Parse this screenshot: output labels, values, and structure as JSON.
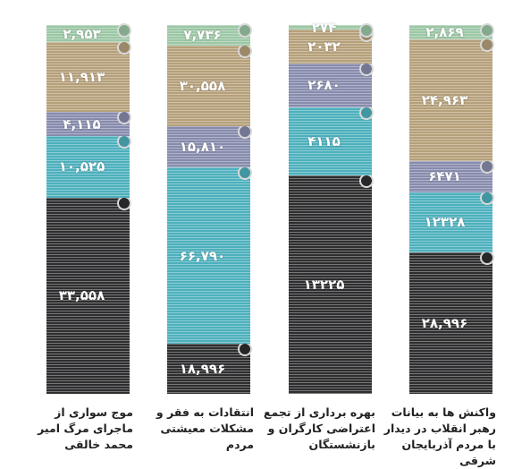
{
  "chart_data": {
    "type": "stacked_percent_bar",
    "categories": [
      "موج سواری از ماجرای مرگ امیر محمد خالقی",
      "انتقادات به فقر و مشکلات معیشتی مردم",
      "بهره برداری از تجمع اعتراضی کارگران و بازنشستگان",
      "واکنش ها به بیانات رهبر انقلاب در دیدار با مردم آذربایجان شرقی"
    ],
    "series": [
      {
        "color": "#2e2e30",
        "values": [
          33558,
          18996,
          13225,
          28996
        ],
        "value_labels": [
          "۳۳,۵۵۸",
          "۱۸,۹۹۶",
          "۱۳۲۲۵",
          "۲۸,۹۹۶"
        ]
      },
      {
        "color": "#4db0bd",
        "values": [
          10525,
          66790,
          4115,
          12328
        ],
        "value_labels": [
          "۱۰,۵۲۵",
          "۶۶,۷۹۰",
          "۴۱۱۵",
          "۱۲۳۲۸"
        ]
      },
      {
        "color": "#878cad",
        "values": [
          4115,
          15810,
          2680,
          6471
        ],
        "value_labels": [
          "۴,۱۱۵",
          "۱۵,۸۱۰",
          "۲۶۸۰",
          "۶۴۷۱"
        ]
      },
      {
        "color": "#b5a07a",
        "values": [
          11913,
          30558,
          2032,
          24963
        ],
        "value_labels": [
          "۱۱,۹۱۳",
          "۳۰,۵۵۸",
          "۲۰۳۲",
          "۲۴,۹۶۳"
        ]
      },
      {
        "color": "#9cc7a5",
        "values": [
          2953,
          7736,
          274,
          2869
        ],
        "value_labels": [
          "۲,۹۵۳",
          "۷,۷۳۶",
          "۲۷۴",
          "۲,۸۶۹"
        ]
      }
    ]
  }
}
